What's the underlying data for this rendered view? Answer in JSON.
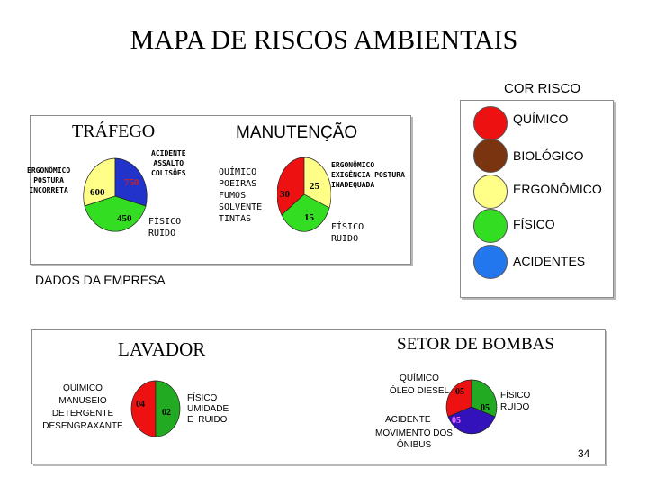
{
  "title": "MAPA  DE  RISCOS  AMBIENTAIS",
  "legend": {
    "heading": "COR RISCO",
    "items": [
      {
        "label": "QUÍMICO",
        "color": "#ee1111"
      },
      {
        "label": "BIOLÓGICO",
        "color": "#7a3410"
      },
      {
        "label": "ERGONÔMICO",
        "color": "#ffff88"
      },
      {
        "label": "FÍSICO",
        "color": "#33dd22"
      },
      {
        "label": "ACIDENTES",
        "color": "#2277ee"
      }
    ]
  },
  "top_panel": {
    "trafego": {
      "heading": "TRÁFEGO",
      "label_ergonomico": "ERGONÔMICO\nPOSTURA\nINCORRETA",
      "label_acidente": "ACIDENTE\nASSALTO\nCOLISÕES",
      "label_fisico": "FÍSICO\nRUIDO",
      "pie": [
        {
          "risk": "ERGONÔMICO",
          "value": "600",
          "color": "#ffff88"
        },
        {
          "risk": "ACIDENTES",
          "value": "750",
          "color": "#2233cc"
        },
        {
          "risk": "FÍSICO",
          "value": "450",
          "color": "#33dd22"
        }
      ]
    },
    "manutencao": {
      "heading": "MANUTENÇÃO",
      "label_quimico": "QUÍMICO\nPOEIRAS\nFUMOS\nSOLVENTE\nTINTAS",
      "label_ergonomico": "ERGONÔMICO\nEXIGÊNCIA POSTURA\nINADEQUADA",
      "label_fisico": "FÍSICO\nRUIDO",
      "pie": [
        {
          "risk": "QUÍMICO",
          "value": "30",
          "color": "#ee1111"
        },
        {
          "risk": "ERGONÔMICO",
          "value": "25",
          "color": "#ffff88"
        },
        {
          "risk": "FÍSICO",
          "value": "15",
          "color": "#33dd22"
        }
      ]
    }
  },
  "company_label": "DADOS DA EMPRESA",
  "bottom_panel": {
    "lavador": {
      "heading": "LAVADOR",
      "label_quimico": "QUÍMICO\nMANUSEIO\nDETERGENTE\nDESENGRAXANTE",
      "label_fisico": "FÍSICO\nUMIDADE\nE  RUIDO",
      "pie": [
        {
          "risk": "QUÍMICO",
          "value": "04",
          "color": "#ee1111"
        },
        {
          "risk": "FÍSICO",
          "value": "02",
          "color": "#22aa22"
        }
      ]
    },
    "bombas": {
      "heading": "SETOR DE BOMBAS",
      "label_quimico": "QUÍMICO\nÓLEO DIESEL",
      "label_fisico": "FÍSICO\nRUIDO",
      "label_acidente": "ACIDENTE",
      "label_acidente_sub": "MOVIMENTO DOS\nÔNIBUS",
      "pie": [
        {
          "risk": "QUÍMICO",
          "value": "05",
          "color": "#ee1111"
        },
        {
          "risk": "FÍSICO",
          "value": "05",
          "color": "#22aa22"
        },
        {
          "risk": "ACIDENTES",
          "value": "05",
          "color": "#3311bb"
        }
      ]
    }
  },
  "page_number": "34"
}
